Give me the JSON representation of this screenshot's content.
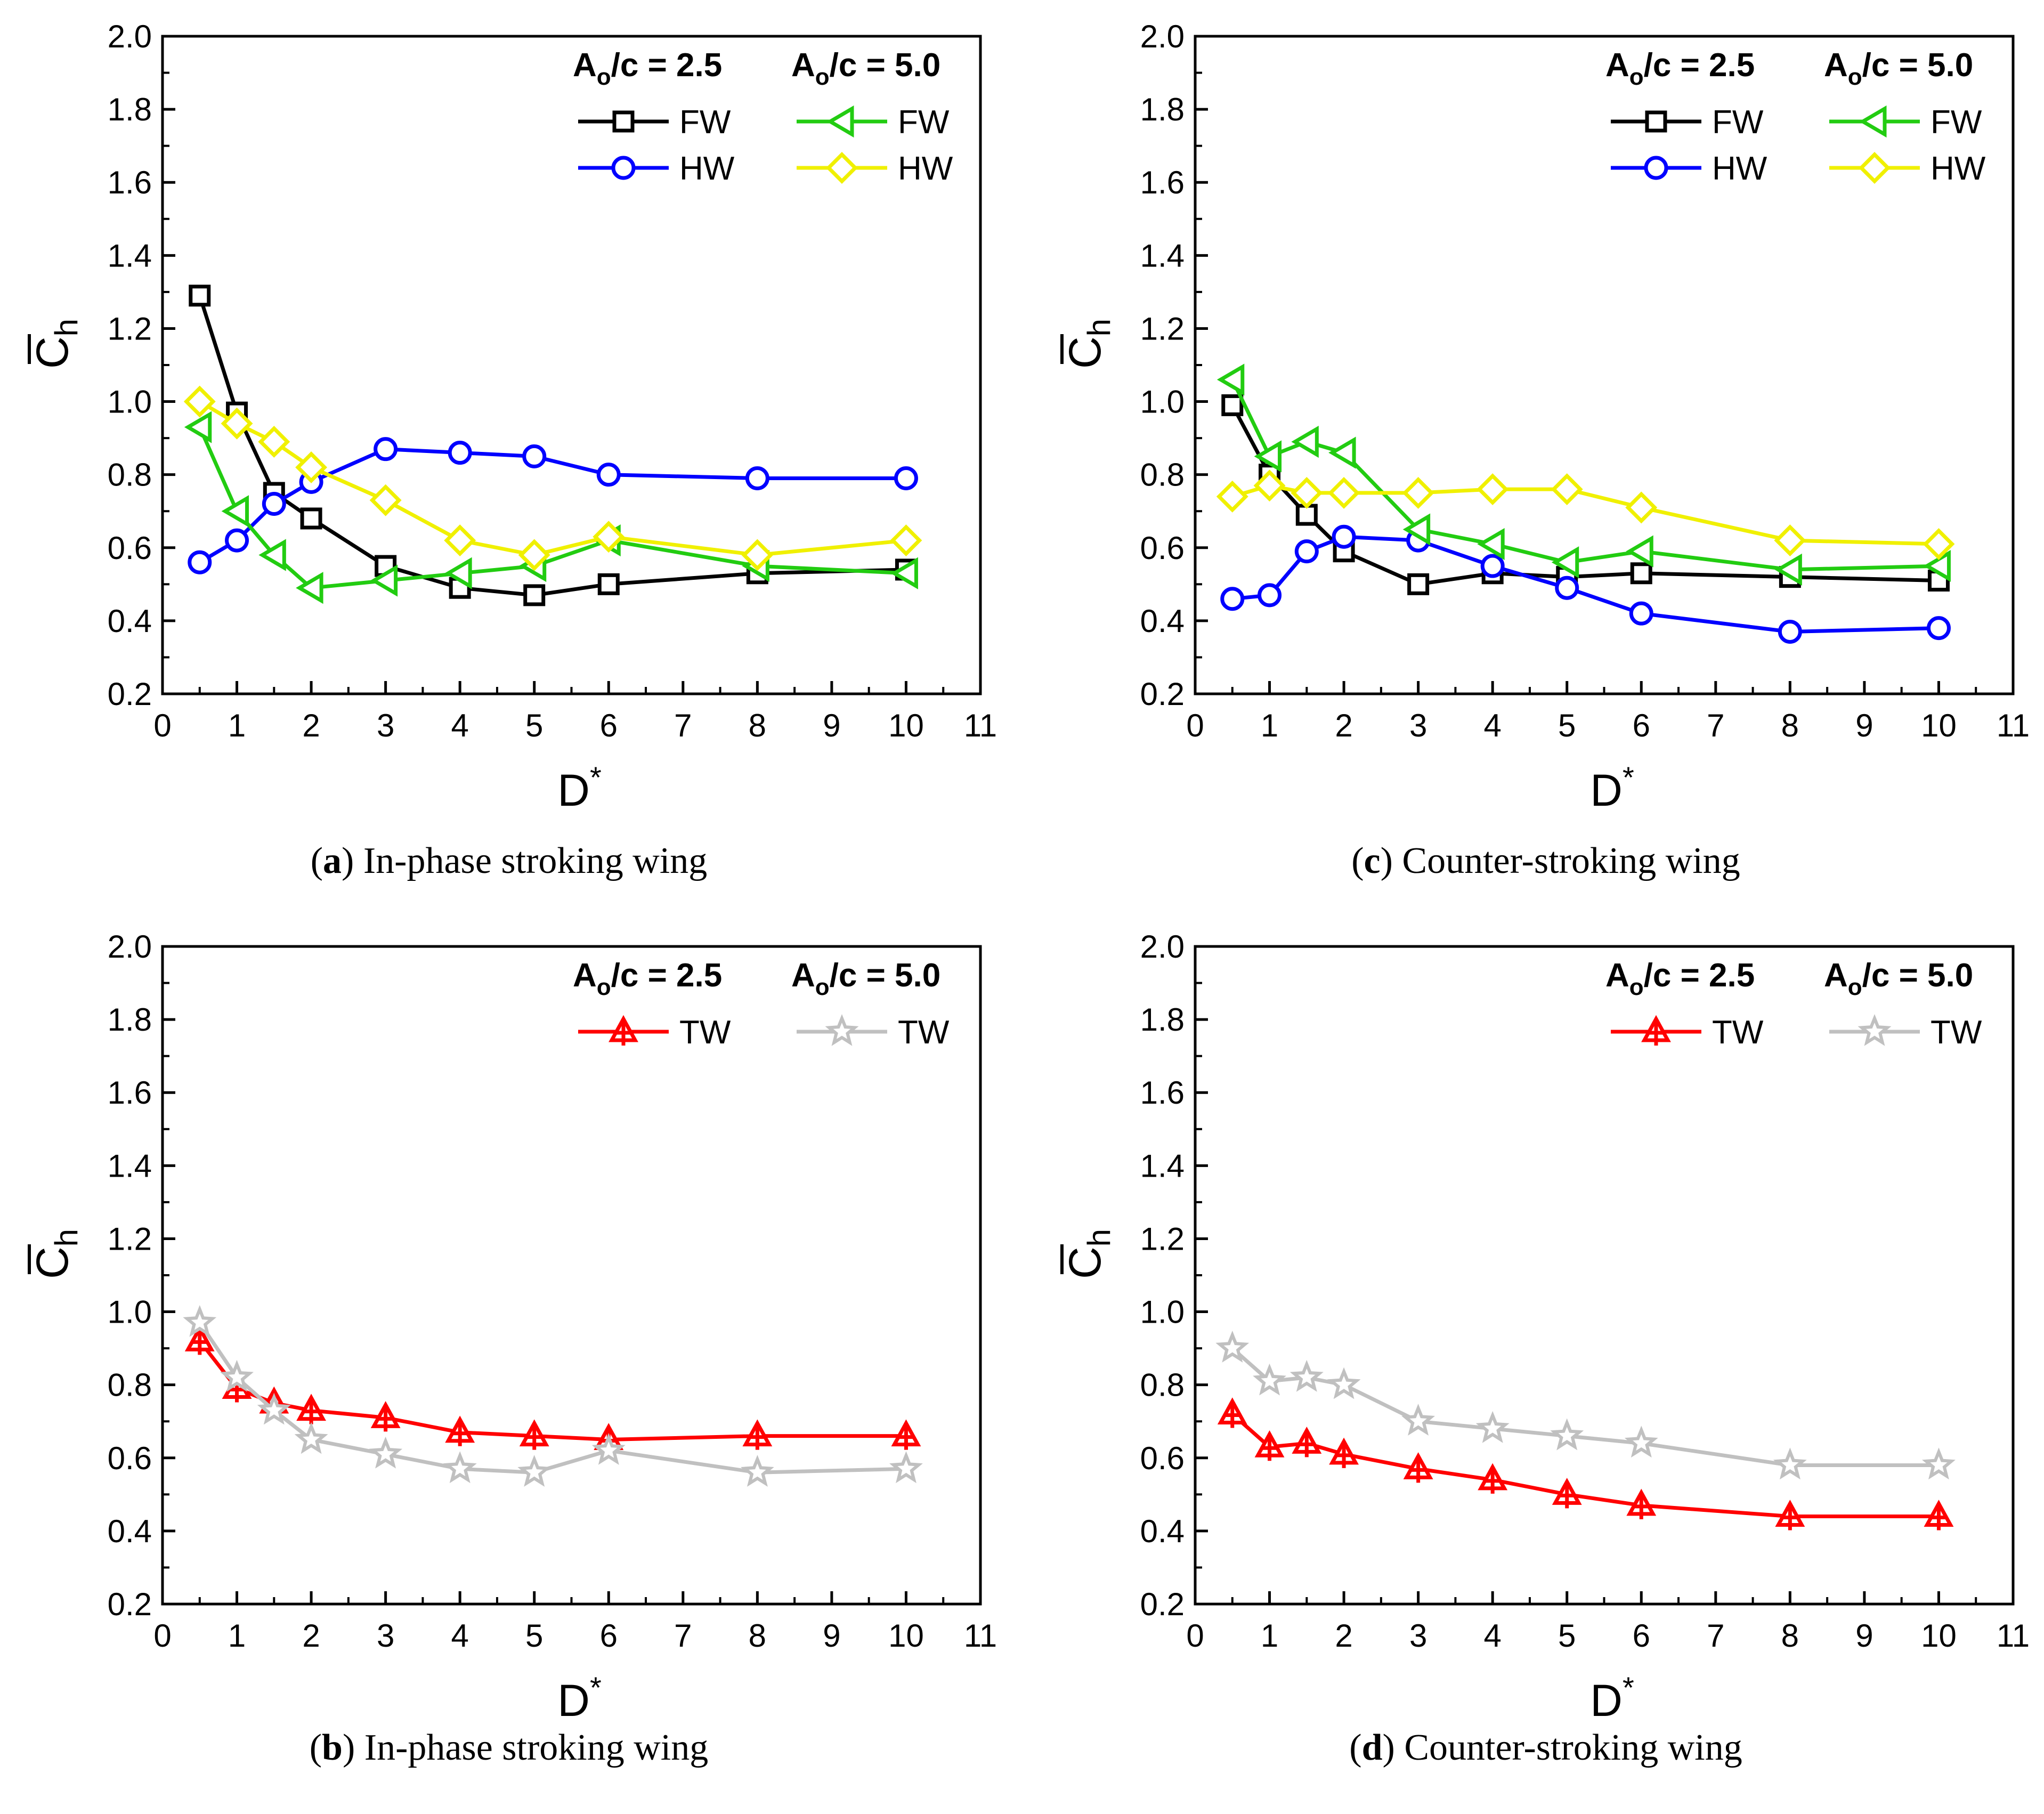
{
  "chart_data": [
    {
      "id": "a",
      "type": "line",
      "caption_letter": "a",
      "caption_text": "In-phase stroking wing",
      "xlabel": "D*",
      "ylabel": "C̄h",
      "xlim": [
        0,
        11
      ],
      "ylim": [
        0.2,
        2.0
      ],
      "xticks": [
        0,
        1,
        2,
        3,
        4,
        5,
        6,
        7,
        8,
        9,
        10,
        11
      ],
      "yticks": [
        0.2,
        0.4,
        0.6,
        0.8,
        1.0,
        1.2,
        1.4,
        1.6,
        1.8,
        2.0
      ],
      "x": [
        0.5,
        1,
        1.5,
        2,
        3,
        4,
        5,
        6,
        8,
        10
      ],
      "legend_headers": [
        "Ao/c = 2.5",
        "Ao/c = 5.0"
      ],
      "series": [
        {
          "name": "FW",
          "group": "Ao/c = 2.5",
          "color": "#000000",
          "marker": "square",
          "values": [
            1.29,
            0.97,
            0.75,
            0.68,
            0.55,
            0.49,
            0.47,
            0.5,
            0.53,
            0.54
          ]
        },
        {
          "name": "HW",
          "group": "Ao/c = 2.5",
          "color": "#0000ff",
          "marker": "circle",
          "values": [
            0.56,
            0.62,
            0.72,
            0.78,
            0.87,
            0.86,
            0.85,
            0.8,
            0.79,
            0.79
          ]
        },
        {
          "name": "FW",
          "group": "Ao/c = 5.0",
          "color": "#22cc11",
          "marker": "triangle-left",
          "values": [
            0.93,
            0.7,
            0.58,
            0.49,
            0.51,
            0.53,
            0.55,
            0.62,
            0.55,
            0.53
          ]
        },
        {
          "name": "HW",
          "group": "Ao/c = 5.0",
          "color": "#f0f000",
          "marker": "diamond",
          "values": [
            1.0,
            0.94,
            0.89,
            0.82,
            0.73,
            0.62,
            0.58,
            0.63,
            0.58,
            0.62
          ]
        }
      ]
    },
    {
      "id": "c",
      "type": "line",
      "caption_letter": "c",
      "caption_text": "Counter-stroking wing",
      "xlabel": "D*",
      "ylabel": "C̄h",
      "xlim": [
        0,
        11
      ],
      "ylim": [
        0.2,
        2.0
      ],
      "xticks": [
        0,
        1,
        2,
        3,
        4,
        5,
        6,
        7,
        8,
        9,
        10,
        11
      ],
      "yticks": [
        0.2,
        0.4,
        0.6,
        0.8,
        1.0,
        1.2,
        1.4,
        1.6,
        1.8,
        2.0
      ],
      "x": [
        0.5,
        1,
        1.5,
        2,
        3,
        4,
        5,
        6,
        8,
        10
      ],
      "legend_headers": [
        "Ao/c = 2.5",
        "Ao/c = 5.0"
      ],
      "series": [
        {
          "name": "FW",
          "group": "Ao/c = 2.5",
          "color": "#000000",
          "marker": "square",
          "values": [
            0.99,
            0.8,
            0.69,
            0.59,
            0.5,
            0.53,
            0.52,
            0.53,
            0.52,
            0.51
          ]
        },
        {
          "name": "HW",
          "group": "Ao/c = 2.5",
          "color": "#0000ff",
          "marker": "circle",
          "values": [
            0.46,
            0.47,
            0.59,
            0.63,
            0.62,
            0.55,
            0.49,
            0.42,
            0.37,
            0.38
          ]
        },
        {
          "name": "FW",
          "group": "Ao/c = 5.0",
          "color": "#22cc11",
          "marker": "triangle-left",
          "values": [
            1.06,
            0.85,
            0.89,
            0.86,
            0.65,
            0.61,
            0.56,
            0.59,
            0.54,
            0.55
          ]
        },
        {
          "name": "HW",
          "group": "Ao/c = 5.0",
          "color": "#f0f000",
          "marker": "diamond",
          "values": [
            0.74,
            0.77,
            0.75,
            0.75,
            0.75,
            0.76,
            0.76,
            0.71,
            0.62,
            0.61
          ]
        }
      ]
    },
    {
      "id": "b",
      "type": "line",
      "caption_letter": "b",
      "caption_text": "In-phase stroking wing",
      "xlabel": "D*",
      "ylabel": "C̄h",
      "xlim": [
        0,
        11
      ],
      "ylim": [
        0.2,
        2.0
      ],
      "xticks": [
        0,
        1,
        2,
        3,
        4,
        5,
        6,
        7,
        8,
        9,
        10,
        11
      ],
      "yticks": [
        0.2,
        0.4,
        0.6,
        0.8,
        1.0,
        1.2,
        1.4,
        1.6,
        1.8,
        2.0
      ],
      "x": [
        0.5,
        1,
        1.5,
        2,
        3,
        4,
        5,
        6,
        8,
        10
      ],
      "legend_headers": [
        "Ao/c = 2.5",
        "Ao/c = 5.0"
      ],
      "series": [
        {
          "name": "TW",
          "group": "Ao/c = 2.5",
          "color": "#ff0000",
          "marker": "triangle-cross",
          "values": [
            0.92,
            0.79,
            0.75,
            0.73,
            0.71,
            0.67,
            0.66,
            0.65,
            0.66,
            0.66
          ]
        },
        {
          "name": "TW",
          "group": "Ao/c = 5.0",
          "color": "#c0c0c0",
          "marker": "star",
          "values": [
            0.97,
            0.82,
            0.73,
            0.65,
            0.61,
            0.57,
            0.56,
            0.62,
            0.56,
            0.57
          ]
        }
      ]
    },
    {
      "id": "d",
      "type": "line",
      "caption_letter": "d",
      "caption_text": "Counter-stroking wing",
      "xlabel": "D*",
      "ylabel": "C̄h",
      "xlim": [
        0,
        11
      ],
      "ylim": [
        0.2,
        2.0
      ],
      "xticks": [
        0,
        1,
        2,
        3,
        4,
        5,
        6,
        7,
        8,
        9,
        10,
        11
      ],
      "yticks": [
        0.2,
        0.4,
        0.6,
        0.8,
        1.0,
        1.2,
        1.4,
        1.6,
        1.8,
        2.0
      ],
      "x": [
        0.5,
        1,
        1.5,
        2,
        3,
        4,
        5,
        6,
        8,
        10
      ],
      "legend_headers": [
        "Ao/c = 2.5",
        "Ao/c = 5.0"
      ],
      "series": [
        {
          "name": "TW",
          "group": "Ao/c = 2.5",
          "color": "#ff0000",
          "marker": "triangle-cross",
          "values": [
            0.72,
            0.63,
            0.64,
            0.61,
            0.57,
            0.54,
            0.5,
            0.47,
            0.44,
            0.44
          ]
        },
        {
          "name": "TW",
          "group": "Ao/c = 5.0",
          "color": "#c0c0c0",
          "marker": "star",
          "values": [
            0.9,
            0.81,
            0.82,
            0.8,
            0.7,
            0.68,
            0.66,
            0.64,
            0.58,
            0.58
          ]
        }
      ]
    }
  ]
}
